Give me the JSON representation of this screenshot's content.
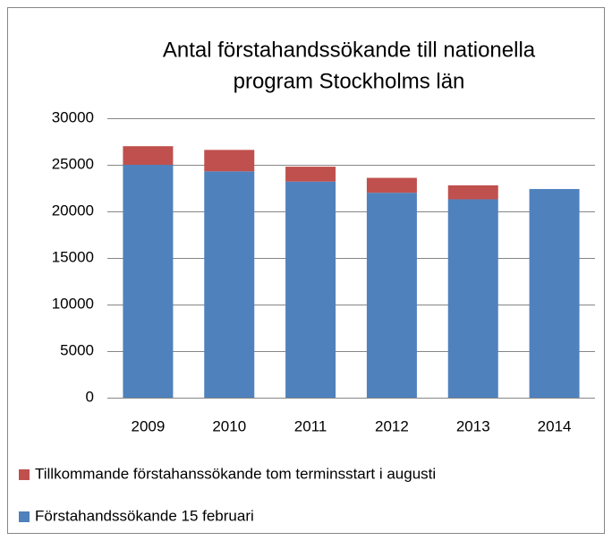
{
  "chart_data": {
    "type": "stacked_bar",
    "title": [
      "Antal förstahandssökande till nationella",
      "program Stockholms län"
    ],
    "categories": [
      "2009",
      "2010",
      "2011",
      "2012",
      "2013",
      "2014"
    ],
    "series": [
      {
        "name": "Förstahandssökande 15 februari",
        "color": "#4f81bd",
        "values": [
          25000,
          24300,
          23200,
          22000,
          21300,
          22400
        ]
      },
      {
        "name": "Tillkommande förstahanssökande tom terminsstart i augusti",
        "color": "#c0504d",
        "values": [
          2000,
          2300,
          1600,
          1600,
          1500,
          null
        ]
      }
    ],
    "ylim": [
      0,
      30000
    ],
    "yticks": [
      0,
      5000,
      10000,
      15000,
      20000,
      25000,
      30000
    ],
    "grid": true
  }
}
